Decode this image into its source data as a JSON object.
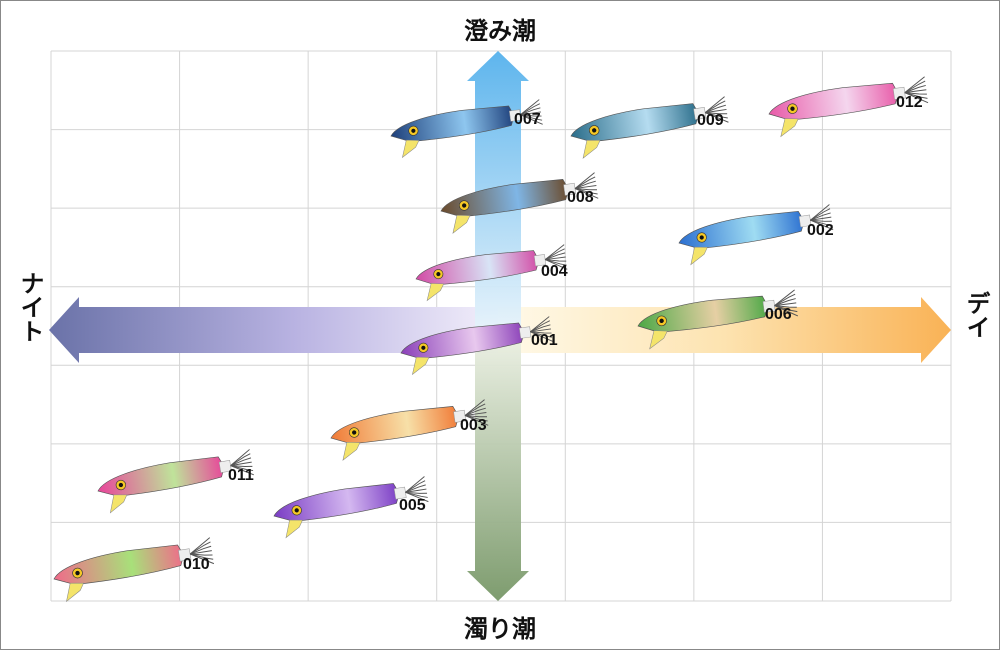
{
  "axes": {
    "top": "澄み潮",
    "bottom": "濁り潮",
    "left": "ナイト",
    "right": "デイ"
  },
  "items": [
    "007",
    "009",
    "012",
    "008",
    "002",
    "004",
    "006",
    "001",
    "003",
    "011",
    "005",
    "010"
  ]
}
